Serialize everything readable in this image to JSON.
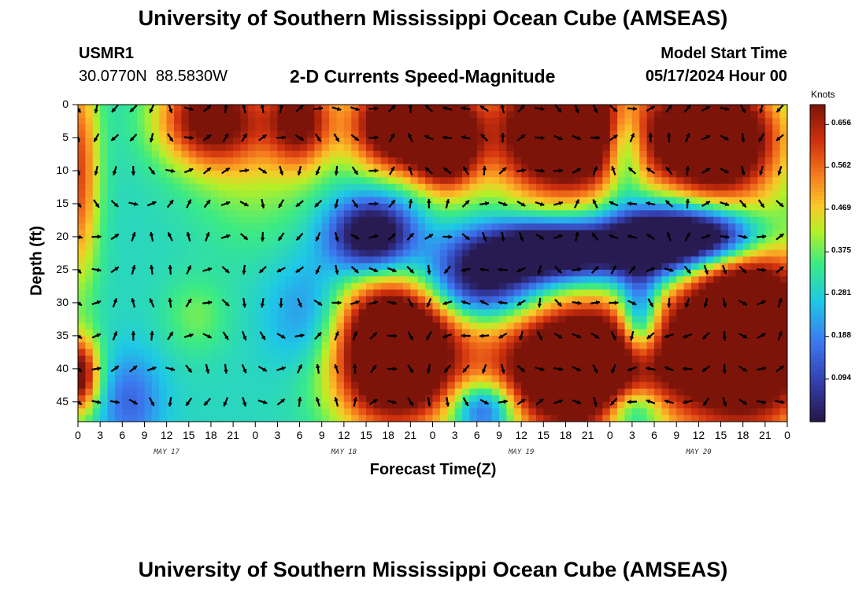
{
  "title": "University of Southern Mississippi Ocean Cube (AMSEAS)",
  "title_bottom": "University of Southern Mississippi Ocean Cube (AMSEAS)",
  "station": {
    "name": "USMR1",
    "lat": "30.0770N",
    "lon": "88.5830W"
  },
  "model_start": {
    "label": "Model Start Time",
    "value": "05/17/2024 Hour 00"
  },
  "colorbar": {
    "unit": "Knots",
    "ticks": [
      "0.656",
      "0.562",
      "0.469",
      "0.375",
      "0.281",
      "0.188",
      "0.094"
    ],
    "range": [
      0.0,
      0.7
    ]
  },
  "chart_data": {
    "type": "heatmap",
    "title": "2-D Currents Speed-Magnitude",
    "xlabel": "Forecast Time(Z)",
    "ylabel": "Depth (ft)",
    "x_tick_labels": [
      "0",
      "3",
      "6",
      "9",
      "12",
      "15",
      "18",
      "21",
      "0",
      "3",
      "6",
      "9",
      "12",
      "15",
      "18",
      "21",
      "0",
      "3",
      "6",
      "9",
      "12",
      "15",
      "18",
      "21",
      "0",
      "3",
      "6",
      "9",
      "12",
      "15",
      "18",
      "21",
      "0"
    ],
    "date_labels": [
      "MAY 17",
      "MAY 18",
      "MAY 19",
      "MAY 20"
    ],
    "x_range_hours": [
      0,
      96
    ],
    "y_tick_labels": [
      "0",
      "5",
      "10",
      "15",
      "20",
      "25",
      "30",
      "35",
      "40",
      "45"
    ],
    "y_range_ft": [
      0,
      48
    ],
    "value_unit": "knots",
    "blobs": [
      {
        "t": 18,
        "d": 2,
        "a": 0.45,
        "st": 5,
        "sd": 5
      },
      {
        "t": 30,
        "d": 2,
        "a": 0.4,
        "st": 3,
        "sd": 5
      },
      {
        "t": 44,
        "d": 3,
        "a": 0.62,
        "st": 5,
        "sd": 5
      },
      {
        "t": 50,
        "d": 6,
        "a": 0.45,
        "st": 3,
        "sd": 5
      },
      {
        "t": 66,
        "d": 4,
        "a": 0.7,
        "st": 7,
        "sd": 7
      },
      {
        "t": 86,
        "d": 5,
        "a": 0.7,
        "st": 6,
        "sd": 6
      },
      {
        "t": 43,
        "d": 37,
        "a": 0.75,
        "st": 6,
        "sd": 8
      },
      {
        "t": 68,
        "d": 40,
        "a": 0.75,
        "st": 8,
        "sd": 7
      },
      {
        "t": 90,
        "d": 35,
        "a": 0.75,
        "st": 7,
        "sd": 10
      },
      {
        "t": 0,
        "d": 41,
        "a": 0.45,
        "st": 2,
        "sd": 4
      },
      {
        "t": 0,
        "d": 10,
        "a": 0.3,
        "st": 2,
        "sd": 12
      },
      {
        "t": 24,
        "d": 10,
        "a": 0.1,
        "st": 6,
        "sd": 8
      },
      {
        "t": 16,
        "d": 32,
        "a": 0.08,
        "st": 3,
        "sd": 4
      },
      {
        "t": 40,
        "d": 20,
        "a": -0.45,
        "st": 4,
        "sd": 4
      },
      {
        "t": 54,
        "d": 27,
        "a": -0.35,
        "st": 6,
        "sd": 4
      },
      {
        "t": 64,
        "d": 22,
        "a": -0.5,
        "st": 7,
        "sd": 3
      },
      {
        "t": 78,
        "d": 21,
        "a": -0.45,
        "st": 5,
        "sd": 4
      },
      {
        "t": 86,
        "d": 20,
        "a": -0.45,
        "st": 5,
        "sd": 3
      },
      {
        "t": 76,
        "d": 33,
        "a": -0.35,
        "st": 2,
        "sd": 5
      },
      {
        "t": 32,
        "d": 32,
        "a": -0.15,
        "st": 4,
        "sd": 6
      },
      {
        "t": 7,
        "d": 45,
        "a": -0.15,
        "st": 3,
        "sd": 5
      },
      {
        "t": 55,
        "d": 46,
        "a": -0.3,
        "st": 3,
        "sd": 3
      },
      {
        "t": 74,
        "d": 6,
        "a": -0.3,
        "st": 2,
        "sd": 5
      },
      {
        "t": 75,
        "d": 46,
        "a": -0.3,
        "st": 3,
        "sd": 3
      }
    ],
    "base_speed": 0.3
  }
}
